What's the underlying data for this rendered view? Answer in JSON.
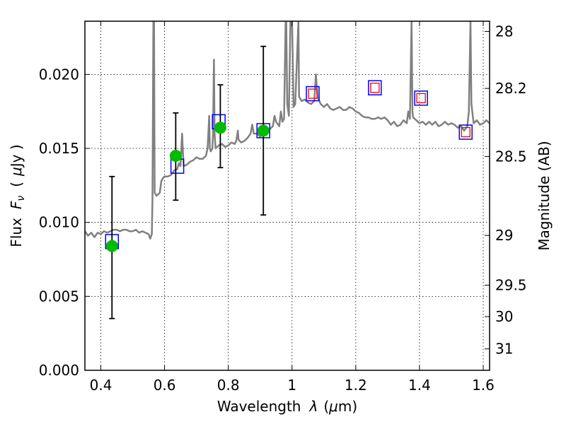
{
  "chart_data": {
    "type": "scatter",
    "title": "",
    "xlabel_text": "Wavelength",
    "xlabel_symbol": "λ",
    "xlabel_unit_open": "(",
    "xlabel_unit_mu": "μ",
    "xlabel_unit_rest": "m)",
    "ylabel_text": "Flux",
    "ylabel_symbol": "F",
    "ylabel_subscript": "ν",
    "ylabel_unit_open": "(",
    "ylabel_unit_mu": "μ",
    "ylabel_unit_rest": "Jy )",
    "y2label": "Magnitude (AB)",
    "xlim": [
      0.35,
      1.62
    ],
    "ylim": [
      0.0,
      0.0236
    ],
    "grid": true,
    "x_ticks": [
      {
        "value": 0.4,
        "label": "0.4"
      },
      {
        "value": 0.6,
        "label": "0.6"
      },
      {
        "value": 0.8,
        "label": "0.8"
      },
      {
        "value": 1.0,
        "label": "1"
      },
      {
        "value": 1.2,
        "label": "1.2"
      },
      {
        "value": 1.4,
        "label": "1.4"
      },
      {
        "value": 1.6,
        "label": "1.6"
      }
    ],
    "y_ticks": [
      {
        "value": 0.0,
        "label": "0.000"
      },
      {
        "value": 0.005,
        "label": "0.005"
      },
      {
        "value": 0.01,
        "label": "0.010"
      },
      {
        "value": 0.015,
        "label": "0.015"
      },
      {
        "value": 0.02,
        "label": "0.020"
      }
    ],
    "y2_ticks": [
      {
        "magnitude": 28,
        "label": "28"
      },
      {
        "magnitude": 28.2,
        "label": "28.2"
      },
      {
        "magnitude": 28.5,
        "label": "28.5"
      },
      {
        "magnitude": 29,
        "label": "29"
      },
      {
        "magnitude": 29.5,
        "label": "29.5"
      },
      {
        "magnitude": 30,
        "label": "30"
      },
      {
        "magnitude": 31,
        "label": "31"
      }
    ],
    "model_spectrum": {
      "color": "#808080",
      "points": [
        [
          0.35,
          0.0094
        ],
        [
          0.36,
          0.0091
        ],
        [
          0.37,
          0.0093
        ],
        [
          0.38,
          0.009
        ],
        [
          0.39,
          0.0093
        ],
        [
          0.4,
          0.0092
        ],
        [
          0.41,
          0.0094
        ],
        [
          0.42,
          0.0093
        ],
        [
          0.43,
          0.0094
        ],
        [
          0.44,
          0.0095
        ],
        [
          0.45,
          0.0095
        ],
        [
          0.46,
          0.0094
        ],
        [
          0.47,
          0.0095
        ],
        [
          0.48,
          0.0095
        ],
        [
          0.49,
          0.0094
        ],
        [
          0.5,
          0.0094
        ],
        [
          0.51,
          0.0095
        ],
        [
          0.52,
          0.0093
        ],
        [
          0.53,
          0.0094
        ],
        [
          0.54,
          0.0093
        ],
        [
          0.55,
          0.0092
        ],
        [
          0.555,
          0.0089
        ],
        [
          0.56,
          0.0092
        ],
        [
          0.562,
          0.0115
        ],
        [
          0.565,
          0.0236
        ],
        [
          0.567,
          0.0236
        ],
        [
          0.569,
          0.012
        ],
        [
          0.575,
          0.0118
        ],
        [
          0.585,
          0.012
        ],
        [
          0.59,
          0.0128
        ],
        [
          0.595,
          0.013
        ],
        [
          0.6,
          0.0131
        ],
        [
          0.61,
          0.0131
        ],
        [
          0.62,
          0.0132
        ],
        [
          0.63,
          0.0135
        ],
        [
          0.64,
          0.0136
        ],
        [
          0.645,
          0.014
        ],
        [
          0.65,
          0.0138
        ],
        [
          0.655,
          0.016
        ],
        [
          0.657,
          0.015
        ],
        [
          0.66,
          0.0138
        ],
        [
          0.67,
          0.0139
        ],
        [
          0.68,
          0.0141
        ],
        [
          0.69,
          0.0142
        ],
        [
          0.7,
          0.0144
        ],
        [
          0.71,
          0.0143
        ],
        [
          0.72,
          0.0143
        ],
        [
          0.73,
          0.0145
        ],
        [
          0.735,
          0.015
        ],
        [
          0.74,
          0.0172
        ],
        [
          0.742,
          0.015
        ],
        [
          0.745,
          0.0148
        ],
        [
          0.75,
          0.015
        ],
        [
          0.752,
          0.016
        ],
        [
          0.755,
          0.021
        ],
        [
          0.757,
          0.016
        ],
        [
          0.76,
          0.015
        ],
        [
          0.77,
          0.0152
        ],
        [
          0.78,
          0.0153
        ],
        [
          0.79,
          0.0151
        ],
        [
          0.8,
          0.0152
        ],
        [
          0.81,
          0.0154
        ],
        [
          0.82,
          0.0153
        ],
        [
          0.825,
          0.0155
        ],
        [
          0.83,
          0.0162
        ],
        [
          0.832,
          0.0156
        ],
        [
          0.84,
          0.0154
        ],
        [
          0.85,
          0.0155
        ],
        [
          0.86,
          0.0157
        ],
        [
          0.87,
          0.016
        ],
        [
          0.875,
          0.0166
        ],
        [
          0.88,
          0.016
        ],
        [
          0.89,
          0.016
        ],
        [
          0.9,
          0.0158
        ],
        [
          0.91,
          0.016
        ],
        [
          0.92,
          0.0162
        ],
        [
          0.93,
          0.0163
        ],
        [
          0.94,
          0.0165
        ],
        [
          0.945,
          0.0172
        ],
        [
          0.95,
          0.0168
        ],
        [
          0.96,
          0.0165
        ],
        [
          0.965,
          0.0175
        ],
        [
          0.97,
          0.0168
        ],
        [
          0.975,
          0.017
        ],
        [
          0.98,
          0.0236
        ],
        [
          0.982,
          0.0236
        ],
        [
          0.985,
          0.018
        ],
        [
          0.99,
          0.0172
        ],
        [
          0.995,
          0.0236
        ],
        [
          1.0,
          0.0236
        ],
        [
          1.005,
          0.0178
        ],
        [
          1.01,
          0.018
        ],
        [
          1.02,
          0.0236
        ],
        [
          1.022,
          0.0185
        ],
        [
          1.03,
          0.0182
        ],
        [
          1.04,
          0.0183
        ],
        [
          1.05,
          0.0181
        ],
        [
          1.06,
          0.018
        ],
        [
          1.07,
          0.0182
        ],
        [
          1.075,
          0.02
        ],
        [
          1.08,
          0.0185
        ],
        [
          1.09,
          0.018
        ],
        [
          1.1,
          0.0178
        ],
        [
          1.11,
          0.018
        ],
        [
          1.12,
          0.0177
        ],
        [
          1.13,
          0.0176
        ],
        [
          1.14,
          0.0177
        ],
        [
          1.15,
          0.0178
        ],
        [
          1.16,
          0.0176
        ],
        [
          1.17,
          0.0176
        ],
        [
          1.18,
          0.0178
        ],
        [
          1.19,
          0.0177
        ],
        [
          1.2,
          0.0175
        ],
        [
          1.21,
          0.0174
        ],
        [
          1.22,
          0.0172
        ],
        [
          1.23,
          0.0171
        ],
        [
          1.24,
          0.0171
        ],
        [
          1.25,
          0.017
        ],
        [
          1.26,
          0.017
        ],
        [
          1.27,
          0.0171
        ],
        [
          1.28,
          0.017
        ],
        [
          1.29,
          0.0171
        ],
        [
          1.3,
          0.0169
        ],
        [
          1.31,
          0.0166
        ],
        [
          1.32,
          0.0168
        ],
        [
          1.33,
          0.0165
        ],
        [
          1.34,
          0.0166
        ],
        [
          1.35,
          0.0169
        ],
        [
          1.36,
          0.0167
        ],
        [
          1.365,
          0.0175
        ],
        [
          1.37,
          0.017
        ],
        [
          1.375,
          0.0236
        ],
        [
          1.378,
          0.0175
        ],
        [
          1.38,
          0.0171
        ],
        [
          1.39,
          0.0169
        ],
        [
          1.4,
          0.0167
        ],
        [
          1.41,
          0.0168
        ],
        [
          1.42,
          0.0166
        ],
        [
          1.43,
          0.0168
        ],
        [
          1.44,
          0.0166
        ],
        [
          1.45,
          0.0168
        ],
        [
          1.46,
          0.0165
        ],
        [
          1.47,
          0.0166
        ],
        [
          1.48,
          0.0168
        ],
        [
          1.49,
          0.0166
        ],
        [
          1.5,
          0.0167
        ],
        [
          1.51,
          0.0166
        ],
        [
          1.52,
          0.0164
        ],
        [
          1.53,
          0.0165
        ],
        [
          1.54,
          0.0162
        ],
        [
          1.55,
          0.0165
        ],
        [
          1.555,
          0.0175
        ],
        [
          1.56,
          0.0236
        ],
        [
          1.563,
          0.018
        ],
        [
          1.57,
          0.0167
        ],
        [
          1.58,
          0.0169
        ],
        [
          1.59,
          0.0166
        ],
        [
          1.6,
          0.0167
        ],
        [
          1.61,
          0.0169
        ],
        [
          1.62,
          0.0167
        ]
      ]
    },
    "photometry": {
      "color": "#00bb00",
      "errorbar_color": "#000000",
      "points": [
        {
          "x": 0.435,
          "y": 0.0084,
          "ylo": 0.0035,
          "yhi": 0.0131
        },
        {
          "x": 0.635,
          "y": 0.0145,
          "ylo": 0.0115,
          "yhi": 0.0174
        },
        {
          "x": 0.775,
          "y": 0.0164,
          "ylo": 0.0137,
          "yhi": 0.0193
        },
        {
          "x": 0.91,
          "y": 0.0162,
          "ylo": 0.0105,
          "yhi": 0.0219
        }
      ]
    },
    "model_fluxes_blue": {
      "color": "#0000ff",
      "points": [
        {
          "x": 0.435,
          "y": 0.0087
        },
        {
          "x": 0.64,
          "y": 0.0138
        },
        {
          "x": 0.77,
          "y": 0.0168
        },
        {
          "x": 0.91,
          "y": 0.0162
        },
        {
          "x": 1.065,
          "y": 0.0187
        },
        {
          "x": 1.26,
          "y": 0.0191
        },
        {
          "x": 1.405,
          "y": 0.0184
        },
        {
          "x": 1.545,
          "y": 0.0161
        }
      ]
    },
    "model_fluxes_red": {
      "color": "#ff0000",
      "points": [
        {
          "x": 1.065,
          "y": 0.0187
        },
        {
          "x": 1.26,
          "y": 0.0191
        },
        {
          "x": 1.405,
          "y": 0.0184
        },
        {
          "x": 1.545,
          "y": 0.0161
        }
      ]
    }
  }
}
